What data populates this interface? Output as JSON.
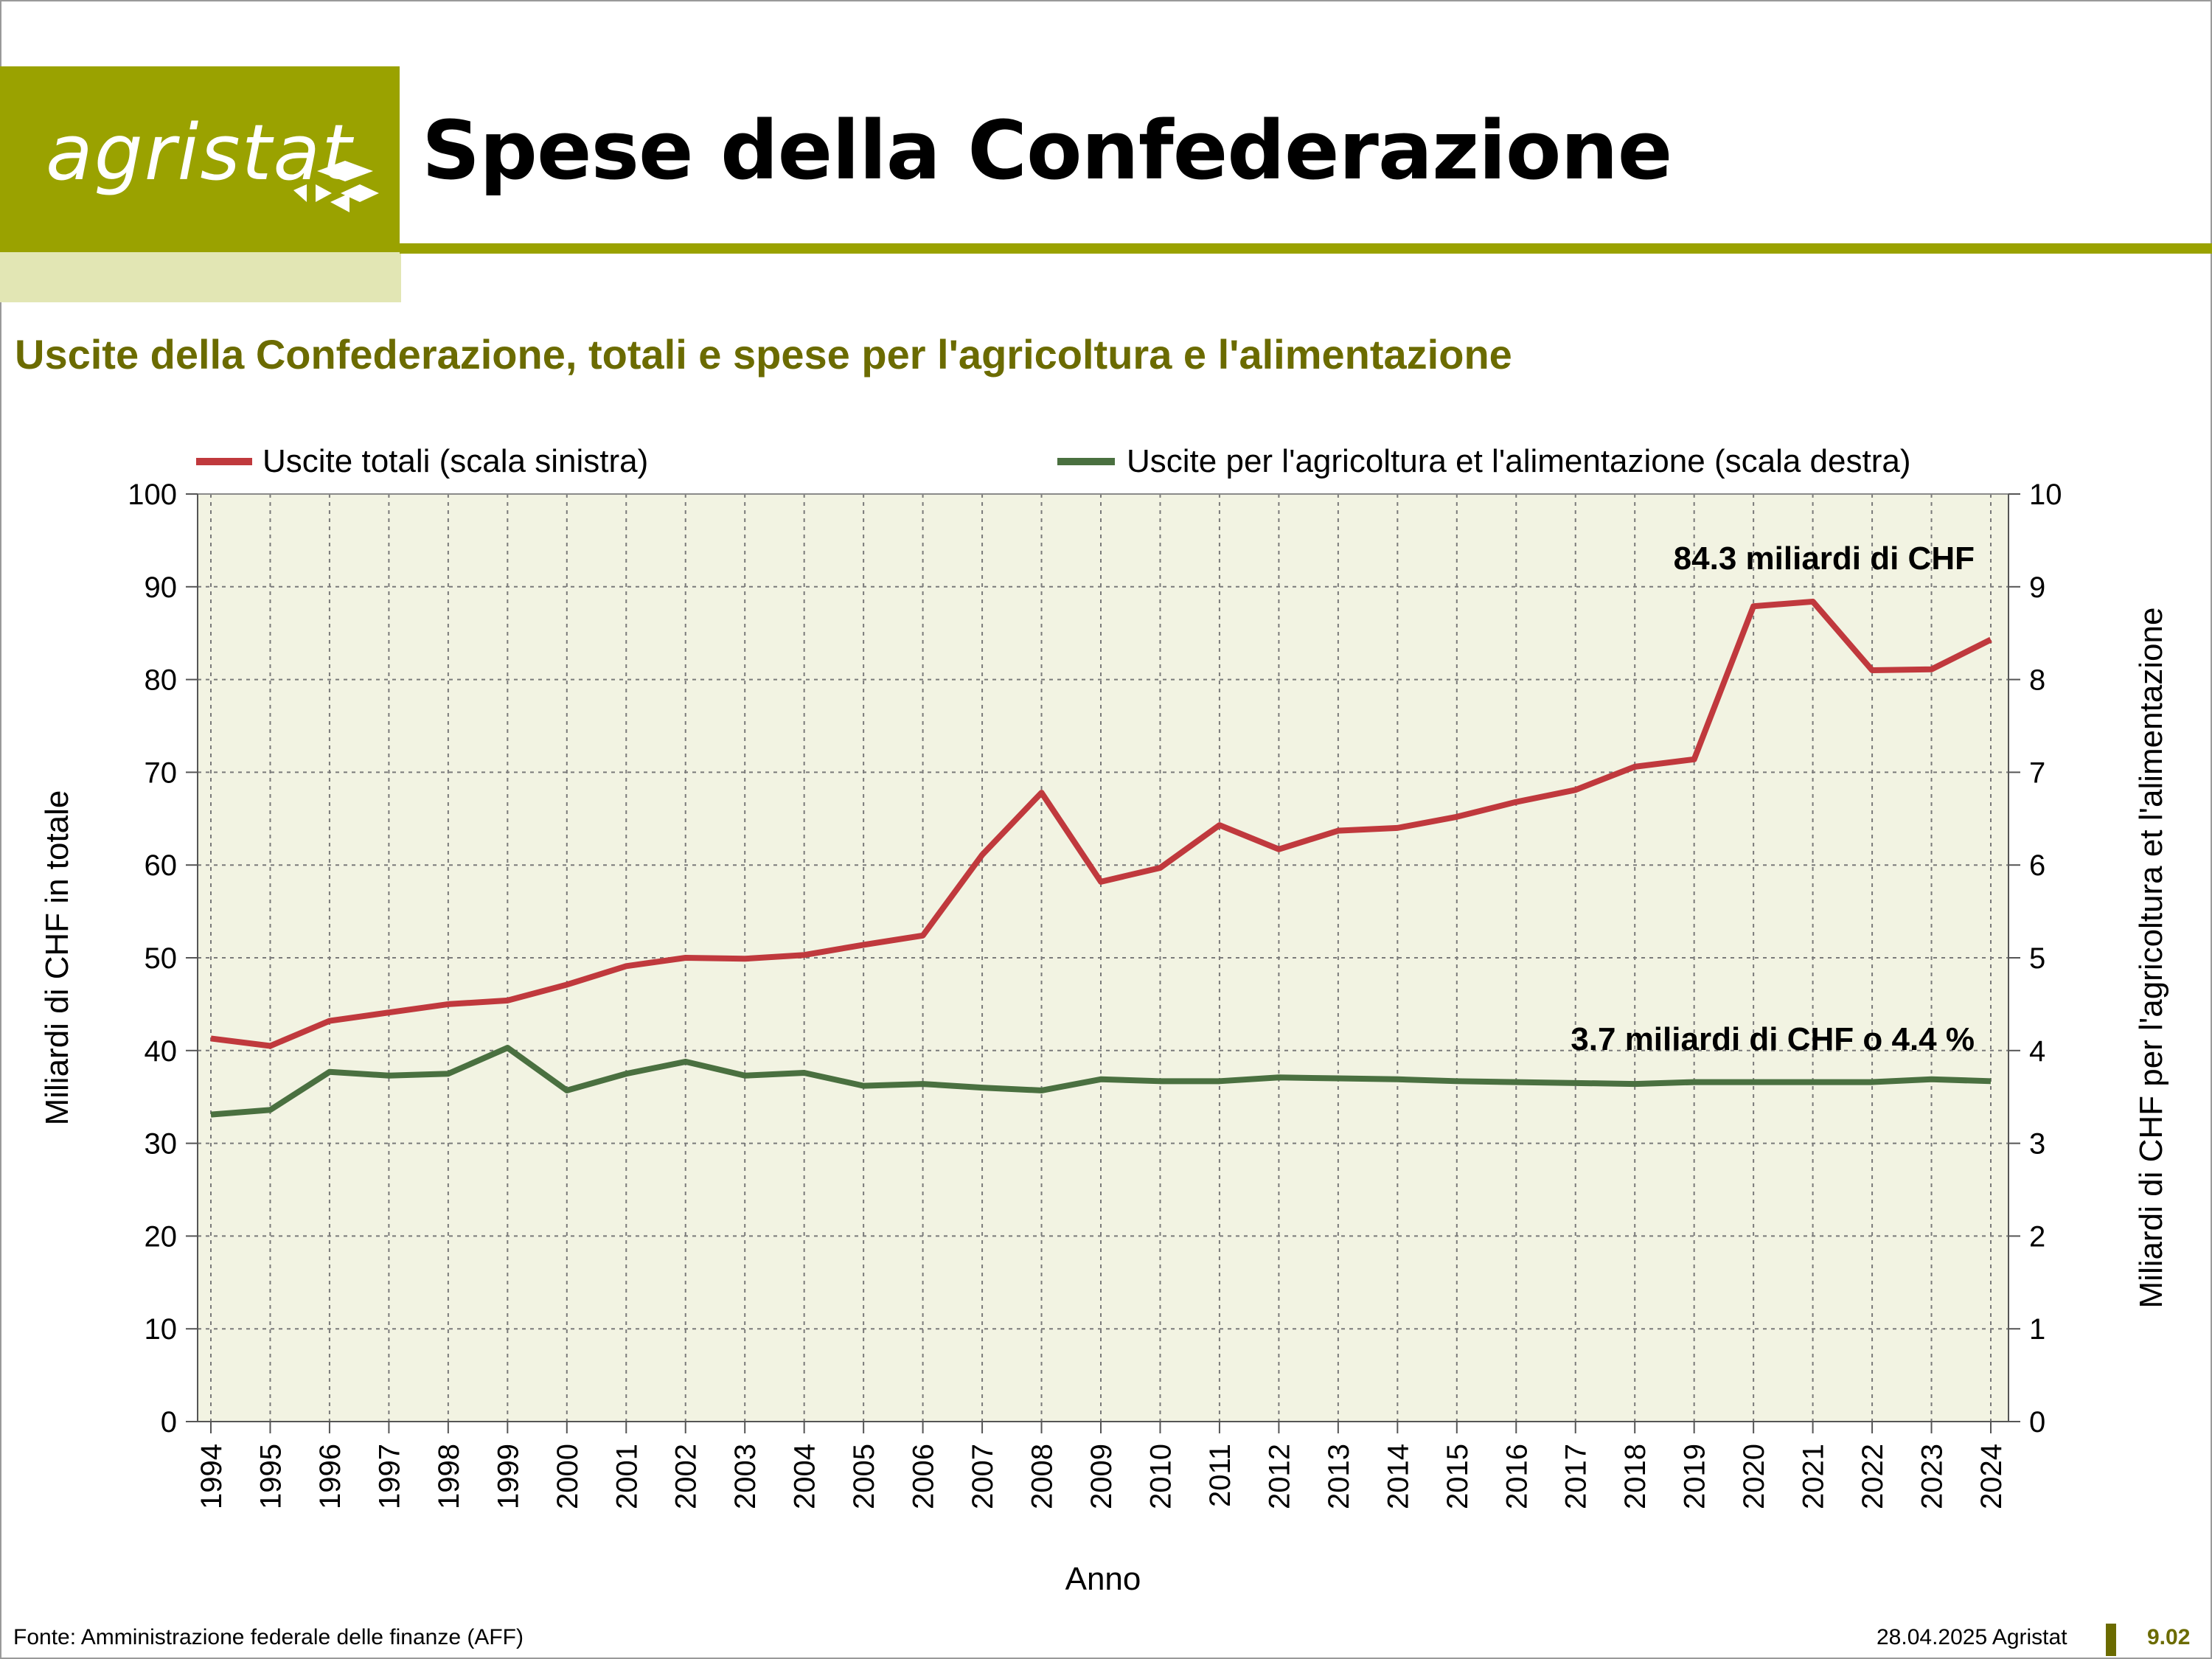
{
  "header": {
    "logo_text": "agristat",
    "title": "Spese della Confederazione",
    "subtitle": "Uscite della Confederazione, totali e spese per l'agricoltura e l'alimentazione"
  },
  "colors": {
    "brand": "#9aa200",
    "brand_light": "#e2e6b4",
    "subtitle": "#6b6b00",
    "plot_bg": "#f2f3e2",
    "series_total": "#c0393d",
    "series_agri": "#4a7040"
  },
  "chart_data": {
    "type": "line",
    "x": [
      "1994",
      "1995",
      "1996",
      "1997",
      "1998",
      "1999",
      "2000",
      "2001",
      "2002",
      "2003",
      "2004",
      "2005",
      "2006",
      "2007",
      "2008",
      "2009",
      "2010",
      "2011",
      "2012",
      "2013",
      "2014",
      "2015",
      "2016",
      "2017",
      "2018",
      "2019",
      "2020",
      "2021",
      "2022",
      "2023",
      "2024"
    ],
    "xlabel": "Anno",
    "ylabel": "Miliardi di CHF in totale",
    "ylabel_right": "Miliardi di CHF per l'agricoltura et l'alimentazione",
    "ylim": [
      0,
      100
    ],
    "ylim_right": [
      0,
      10
    ],
    "yticks": [
      "0",
      "10",
      "20",
      "30",
      "40",
      "50",
      "60",
      "70",
      "80",
      "90",
      "100"
    ],
    "yticks_right": [
      "0",
      "1",
      "2",
      "3",
      "4",
      "5",
      "6",
      "7",
      "8",
      "9",
      "10"
    ],
    "grid": true,
    "legend_position": "top",
    "series": [
      {
        "name": "Uscite totali (scala sinistra)",
        "axis": "left",
        "values": [
          41.3,
          40.5,
          43.2,
          44.1,
          45.0,
          45.4,
          47.1,
          49.1,
          50.0,
          49.9,
          50.3,
          51.4,
          52.4,
          61.1,
          67.8,
          58.2,
          59.7,
          64.3,
          61.7,
          63.7,
          64.0,
          65.2,
          66.8,
          68.1,
          70.6,
          71.4,
          87.9,
          88.4,
          81.0,
          81.1,
          84.3
        ]
      },
      {
        "name": "Uscite per l'agricoltura et l'alimentazione (scala destra)",
        "axis": "right",
        "values": [
          3.31,
          3.36,
          3.77,
          3.73,
          3.75,
          4.03,
          3.57,
          3.75,
          3.88,
          3.73,
          3.76,
          3.62,
          3.64,
          3.6,
          3.57,
          3.69,
          3.67,
          3.67,
          3.71,
          3.7,
          3.69,
          3.67,
          3.66,
          3.65,
          3.64,
          3.66,
          3.66,
          3.66,
          3.66,
          3.69,
          3.67
        ]
      }
    ],
    "annotations": [
      {
        "text": "84.3 miliardi di CHF",
        "near": "Uscite totali 2024"
      },
      {
        "text": "3.7 miliardi di CHF o 4.4 %",
        "near": "Uscite agricoltura 2024"
      }
    ]
  },
  "footer": {
    "source": "Fonte: Amministrazione federale delle finanze (AFF)",
    "date_org": "28.04.2025 Agristat",
    "page": "9.02"
  }
}
